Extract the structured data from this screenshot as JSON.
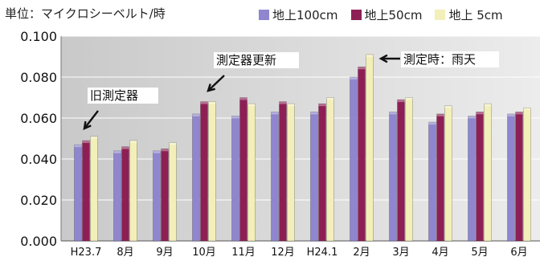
{
  "unit_label": "単位：マイクロシーベルト/時",
  "colors": {
    "plot_background": "#c9c9c9",
    "plot_background_light": "#ececec",
    "grid": "#ffffff"
  },
  "chart_data": {
    "type": "bar",
    "title": "",
    "xlabel": "",
    "ylabel": "",
    "ylim": [
      0,
      0.1
    ],
    "yticks": [
      "0.000",
      "0.020",
      "0.040",
      "0.060",
      "0.080",
      "0.100"
    ],
    "grid": true,
    "legend_position": "top",
    "categories": [
      "H23.7",
      "8月",
      "9月",
      "10月",
      "11月",
      "12月",
      "H24.1",
      "2月",
      "3月",
      "4月",
      "5月",
      "6月"
    ],
    "series": [
      {
        "name": "地上100cm",
        "color": "#8f86cf",
        "values": [
          0.047,
          0.044,
          0.044,
          0.062,
          0.061,
          0.063,
          0.063,
          0.08,
          0.063,
          0.058,
          0.061,
          0.062
        ]
      },
      {
        "name": "地上50cm",
        "color": "#8e1f55",
        "values": [
          0.049,
          0.046,
          0.045,
          0.068,
          0.07,
          0.068,
          0.067,
          0.085,
          0.069,
          0.062,
          0.063,
          0.063
        ]
      },
      {
        "name": "地上 5cm",
        "color": "#f3efb8",
        "values": [
          0.051,
          0.049,
          0.048,
          0.068,
          0.067,
          0.067,
          0.07,
          0.091,
          0.07,
          0.066,
          0.067,
          0.065
        ]
      }
    ],
    "annotations": [
      {
        "text": "旧測定器",
        "category": "H23.7",
        "arrow_direction": "down-left"
      },
      {
        "text": "測定器更新",
        "category": "10月",
        "arrow_direction": "down-left"
      },
      {
        "text": "測定時：雨天",
        "category": "2月",
        "arrow_direction": "left"
      }
    ]
  }
}
